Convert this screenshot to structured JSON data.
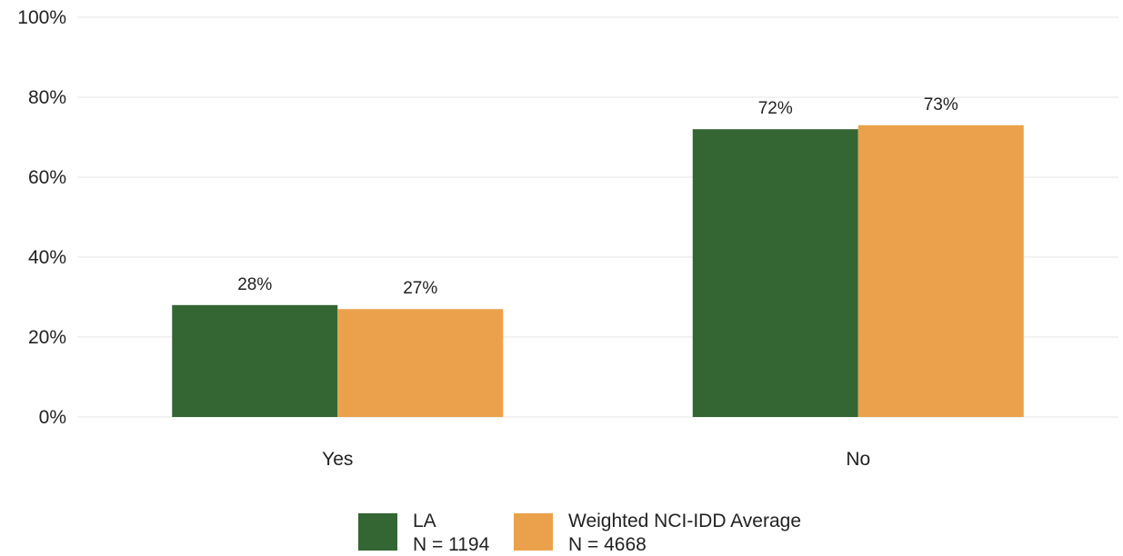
{
  "chart_data": {
    "type": "bar",
    "categories": [
      "Yes",
      "No"
    ],
    "series": [
      {
        "name": "LA",
        "legend_lines": [
          "LA",
          "N = 1194"
        ],
        "color": "#336633",
        "values": [
          28,
          72
        ],
        "labels": [
          "28%",
          "72%"
        ]
      },
      {
        "name": "Weighted NCI-IDD Average",
        "legend_lines": [
          "Weighted NCI-IDD Average",
          "N = 4668"
        ],
        "color": "#eba14b",
        "values": [
          27,
          73
        ],
        "labels": [
          "27%",
          "73%"
        ]
      }
    ],
    "y_ticks": [
      {
        "value": 0,
        "label": "0%"
      },
      {
        "value": 20,
        "label": "20%"
      },
      {
        "value": 40,
        "label": "40%"
      },
      {
        "value": 60,
        "label": "60%"
      },
      {
        "value": 80,
        "label": "80%"
      },
      {
        "value": 100,
        "label": "100%"
      }
    ],
    "ylim": [
      0,
      100
    ],
    "grid": true,
    "legend_position": "bottom",
    "title": "",
    "xlabel": "",
    "ylabel": ""
  }
}
